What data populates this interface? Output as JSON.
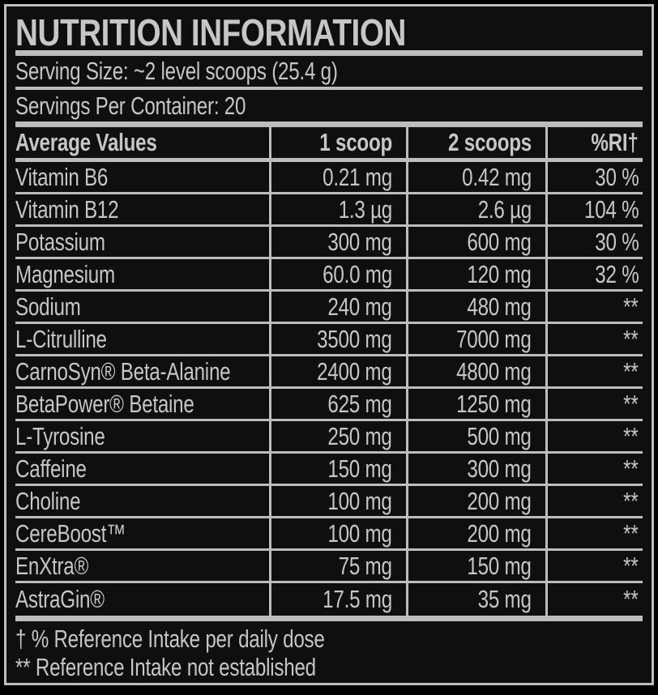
{
  "title": "NUTRITION INFORMATION",
  "serving_size": "Serving Size: ~2 level scoops (25.4 g)",
  "servings_per_container": "Servings Per Container: 20",
  "table": {
    "headers": [
      "Average Values",
      "1 scoop",
      "2 scoops",
      "%RI†"
    ],
    "rows": [
      [
        "Vitamin B6",
        "0.21 mg",
        "0.42 mg",
        "30 %"
      ],
      [
        "Vitamin B12",
        "1.3 µg",
        "2.6 µg",
        "104 %"
      ],
      [
        "Potassium",
        "300 mg",
        "600 mg",
        "30 %"
      ],
      [
        "Magnesium",
        "60.0 mg",
        "120 mg",
        "32 %"
      ],
      [
        "Sodium",
        "240 mg",
        "480 mg",
        "**"
      ],
      [
        "L-Citrulline",
        "3500 mg",
        "7000 mg",
        "**"
      ],
      [
        "CarnoSyn® Beta-Alanine",
        "2400 mg",
        "4800 mg",
        "**"
      ],
      [
        "BetaPower® Betaine",
        "625 mg",
        "1250 mg",
        "**"
      ],
      [
        "L-Tyrosine",
        "250 mg",
        "500 mg",
        "**"
      ],
      [
        "Caffeine",
        "150 mg",
        "300 mg",
        "**"
      ],
      [
        "Choline",
        "100 mg",
        "200 mg",
        "**"
      ],
      [
        "CereBoost™",
        "100 mg",
        "200 mg",
        "**"
      ],
      [
        "EnXtra®",
        "75 mg",
        "150 mg",
        "**"
      ],
      [
        "AstraGin®",
        "17.5 mg",
        "35 mg",
        "**"
      ]
    ]
  },
  "footnotes": [
    "† % Reference Intake per daily dose",
    "** Reference Intake not established"
  ],
  "colors": {
    "outer_background": "#000000",
    "label_background": "#0f0f0f",
    "text": "#c6c6c6",
    "rules_and_border": "#bdbdbd"
  }
}
